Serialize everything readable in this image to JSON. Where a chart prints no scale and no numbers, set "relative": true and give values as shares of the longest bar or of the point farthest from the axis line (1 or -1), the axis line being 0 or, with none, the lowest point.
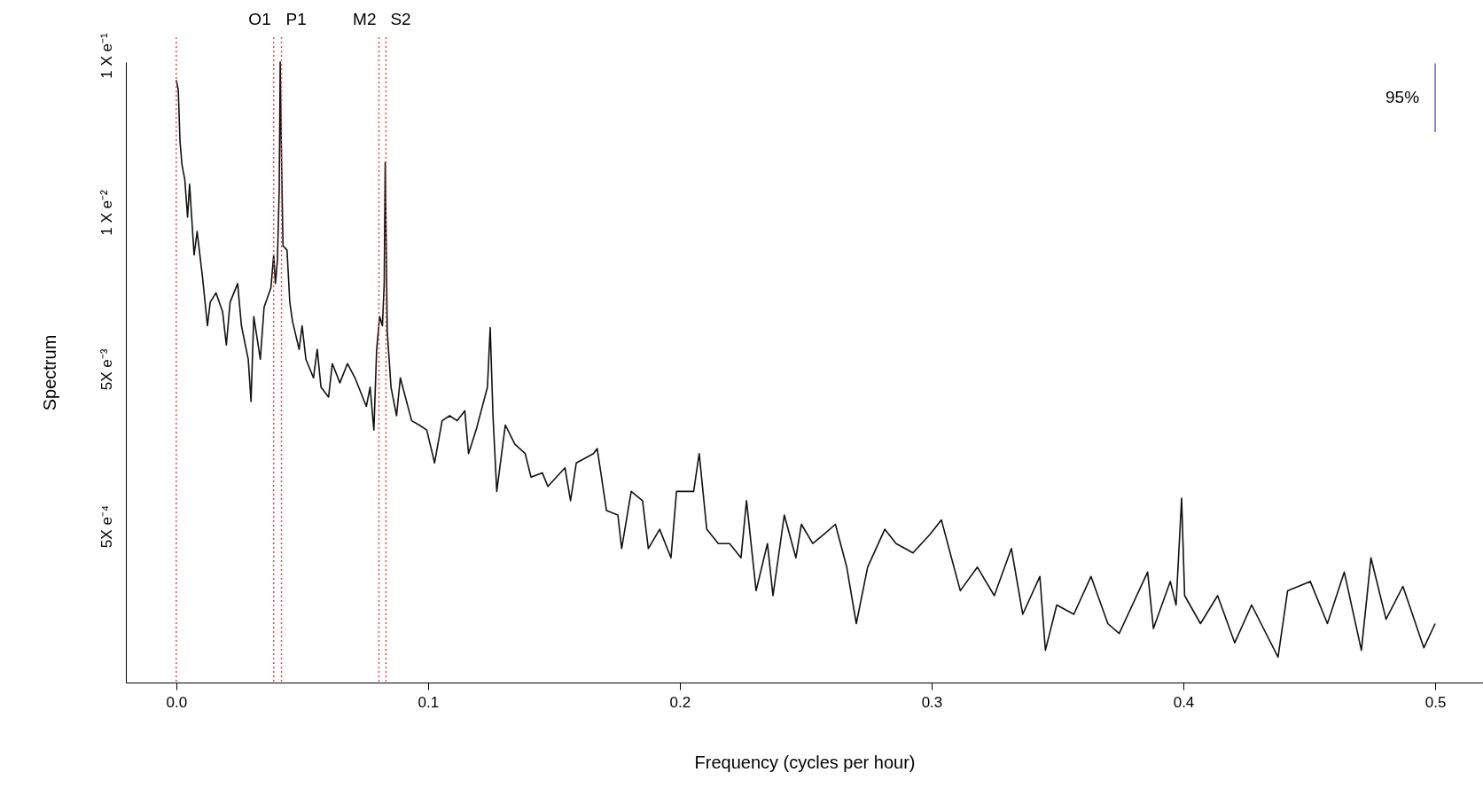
{
  "chart_data": {
    "type": "line",
    "xlabel": "Frequency (cycles per hour)",
    "ylabel": "Spectrum",
    "relative": true,
    "xlim": [
      -0.02,
      0.519
    ],
    "xticks": [
      {
        "value": 0,
        "label": "0.0"
      },
      0.1,
      0.2,
      0.3,
      0.4,
      0.5
    ],
    "grid": false,
    "marker": "none",
    "line_style": "solid",
    "series": [
      {
        "color": "#111111",
        "x": [
          0,
          0.0008,
          0.0015,
          0.0023,
          0.0034,
          0.0045,
          0.0053,
          0.0071,
          0.0083,
          0.0105,
          0.0124,
          0.0135,
          0.0158,
          0.0184,
          0.0199,
          0.0214,
          0.0244,
          0.0259,
          0.0286,
          0.0297,
          0.0308,
          0.0334,
          0.0349,
          0.0376,
          0.0387,
          0.0394,
          0.0402,
          0.0409,
          0.0413,
          0.0417,
          0.0424,
          0.044,
          0.0451,
          0.0462,
          0.0488,
          0.05,
          0.0515,
          0.0545,
          0.056,
          0.0575,
          0.0605,
          0.062,
          0.065,
          0.068,
          0.071,
          0.0755,
          0.077,
          0.0785,
          0.0796,
          0.0808,
          0.0819,
          0.0826,
          0.083,
          0.0834,
          0.0838,
          0.0853,
          0.0875,
          0.089,
          0.0935,
          0.0965,
          0.0995,
          0.1026,
          0.1056,
          0.1086,
          0.1116,
          0.1146,
          0.1161,
          0.1191,
          0.1236,
          0.1247,
          0.1258,
          0.1273,
          0.1307,
          0.1345,
          0.1386,
          0.1409,
          0.1454,
          0.1476,
          0.1544,
          0.1566,
          0.1589,
          0.1657,
          0.1672,
          0.1709,
          0.1754,
          0.1769,
          0.1807,
          0.1852,
          0.1875,
          0.192,
          0.1965,
          0.1987,
          0.2055,
          0.2077,
          0.2107,
          0.2153,
          0.2198,
          0.2243,
          0.2265,
          0.2303,
          0.2348,
          0.237,
          0.2415,
          0.2461,
          0.2483,
          0.2528,
          0.2573,
          0.2618,
          0.2663,
          0.2701,
          0.2746,
          0.2814,
          0.2859,
          0.2926,
          0.2994,
          0.3039,
          0.3069,
          0.3114,
          0.3182,
          0.3249,
          0.3317,
          0.3362,
          0.343,
          0.3452,
          0.3497,
          0.3565,
          0.3633,
          0.37,
          0.3745,
          0.3858,
          0.3881,
          0.3948,
          0.3971,
          0.3993,
          0.4005,
          0.4068,
          0.4136,
          0.4204,
          0.4271,
          0.4376,
          0.4414,
          0.4504,
          0.4572,
          0.4639,
          0.4707,
          0.4745,
          0.4805,
          0.4872,
          0.4955,
          0.5
        ],
        "values": [
          0.971,
          0.956,
          0.872,
          0.834,
          0.811,
          0.75,
          0.803,
          0.689,
          0.727,
          0.651,
          0.575,
          0.613,
          0.628,
          0.598,
          0.544,
          0.613,
          0.643,
          0.575,
          0.521,
          0.453,
          0.59,
          0.521,
          0.605,
          0.636,
          0.689,
          0.643,
          0.681,
          0.796,
          1,
          0.872,
          0.704,
          0.697,
          0.613,
          0.582,
          0.537,
          0.575,
          0.521,
          0.491,
          0.537,
          0.476,
          0.46,
          0.514,
          0.483,
          0.514,
          0.491,
          0.445,
          0.476,
          0.407,
          0.537,
          0.59,
          0.575,
          0.643,
          0.838,
          0.704,
          0.567,
          0.476,
          0.43,
          0.491,
          0.422,
          0.415,
          0.407,
          0.354,
          0.422,
          0.43,
          0.422,
          0.438,
          0.369,
          0.407,
          0.476,
          0.572,
          0.43,
          0.308,
          0.415,
          0.384,
          0.369,
          0.331,
          0.338,
          0.316,
          0.346,
          0.293,
          0.354,
          0.369,
          0.377,
          0.277,
          0.27,
          0.216,
          0.308,
          0.293,
          0.216,
          0.247,
          0.201,
          0.308,
          0.308,
          0.369,
          0.247,
          0.224,
          0.224,
          0.201,
          0.293,
          0.148,
          0.224,
          0.14,
          0.27,
          0.201,
          0.255,
          0.224,
          0.239,
          0.255,
          0.186,
          0.095,
          0.186,
          0.247,
          0.224,
          0.209,
          0.239,
          0.262,
          0.216,
          0.148,
          0.186,
          0.14,
          0.216,
          0.11,
          0.171,
          0.052,
          0.125,
          0.11,
          0.171,
          0.095,
          0.079,
          0.178,
          0.087,
          0.163,
          0.125,
          0.297,
          0.14,
          0.095,
          0.14,
          0.064,
          0.125,
          0.041,
          0.148,
          0.163,
          0.095,
          0.178,
          0.052,
          0.201,
          0.102,
          0.155,
          0.056,
          0.095
        ]
      },
      {
        "name": "95%",
        "color": "#6b6fbf",
        "x": [
          0.5,
          0.5
        ],
        "values": [
          0.998,
          0.887
        ]
      }
    ],
    "ref_lines": [
      {
        "axis": "x",
        "value": 0,
        "label": null,
        "color": "#e8474f",
        "line_style": "dotted"
      },
      {
        "axis": "x",
        "value": 0.0387,
        "label": "O1",
        "color": "#e8474f",
        "line_style": "dotted"
      },
      {
        "axis": "x",
        "value": 0.0418,
        "label": "P1",
        "color": "#e8474f",
        "line_style": "dotted"
      },
      {
        "axis": "x",
        "value": 0.0805,
        "label": "M2",
        "color": "#e8474f",
        "line_style": "dotted"
      },
      {
        "axis": "x",
        "value": 0.0833,
        "label": "S2",
        "color": "#e8474f",
        "line_style": "dotted"
      }
    ],
    "annotations": [
      "1 X e⁻¹",
      "1 X e⁻²",
      "5X e⁻³",
      "5X e⁻⁴"
    ]
  }
}
